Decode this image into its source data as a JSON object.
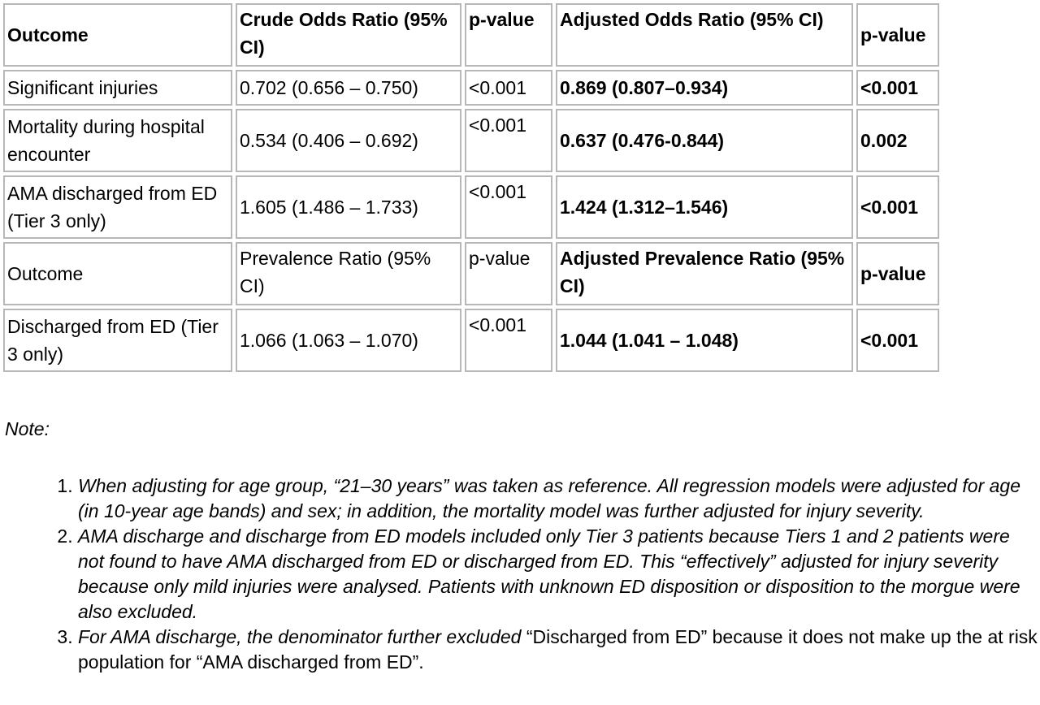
{
  "table": {
    "header1": [
      "Outcome",
      "Crude Odds Ratio (95% CI)",
      "p-value",
      "Adjusted Odds Ratio (95% CI)",
      "p-value"
    ],
    "rows1": [
      [
        "Significant injuries",
        "0.702 (0.656 – 0.750)",
        "<0.001",
        "0.869 (0.807–0.934)",
        "<0.001"
      ],
      [
        "Mortality during hospital encounter",
        "0.534 (0.406 – 0.692)",
        "<0.001",
        "0.637 (0.476-0.844)",
        "0.002"
      ],
      [
        "AMA discharged from ED (Tier 3 only)",
        "1.605 (1.486 – 1.733)",
        "<0.001",
        "1.424 (1.312–1.546)",
        "<0.001"
      ]
    ],
    "header2": [
      "Outcome",
      "Prevalence Ratio (95% CI)",
      "p-value",
      "Adjusted Prevalence Ratio (95% CI)",
      "p-value"
    ],
    "rows2": [
      [
        "Discharged from ED (Tier 3 only)",
        "1.066 (1.063 – 1.070)",
        "<0.001",
        "1.044 (1.041 – 1.048)",
        "<0.001"
      ]
    ]
  },
  "note": {
    "label": "Note:",
    "items": [
      "When adjusting for age group, “21–30 years” was taken as reference. All regression models were adjusted for age (in 10-year age bands) and sex; in addition, the mortality model was further adjusted for injury severity.",
      "AMA discharge and discharge from ED models included only Tier 3 patients because Tiers 1 and 2 patients were not found to have AMA discharged from ED or discharged from ED. This “effectively” adjusted for injury severity because only mild injuries were analysed. Patients with unknown ED disposition or disposition to the morgue were also excluded.",
      {
        "italic_part": "For AMA discharge, the denominator further excluded",
        "normal_part": " “Discharged from ED” because it does not make up the at risk population for “AMA discharged from ED”."
      }
    ]
  }
}
